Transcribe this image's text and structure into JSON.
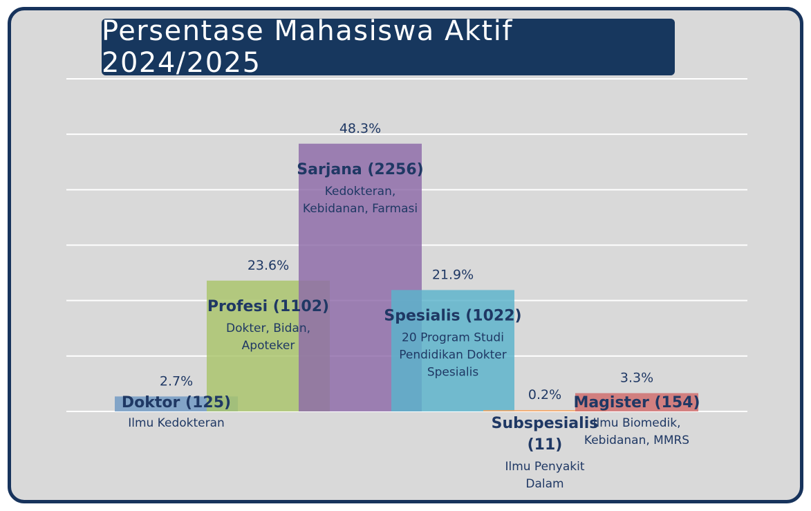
{
  "chart_data": {
    "type": "bar",
    "title": "Persentase Mahasiswa Aktif 2024/2025",
    "ylim": [
      0,
      60
    ],
    "grid": true,
    "legend": "none",
    "bars": [
      {
        "label": "Doktor (125)",
        "sub": [
          "Ilmu Kedokteran"
        ],
        "value": 2.7,
        "value_label": "2.7%",
        "color": "#6f98c3"
      },
      {
        "label": "Profesi (1102)",
        "sub": [
          "Dokter, Bidan,",
          "Apoteker"
        ],
        "value": 23.6,
        "value_label": "23.6%",
        "color": "#a9c56a"
      },
      {
        "label": "Sarjana (2256)",
        "sub": [
          "Kedokteran,",
          "Kebidanan, Farmasi"
        ],
        "value": 48.3,
        "value_label": "48.3%",
        "color": "#8d6aa8"
      },
      {
        "label": "Spesialis (1022)",
        "sub": [
          "20 Program Studi",
          "Pendidikan Dokter",
          "Spesialis"
        ],
        "value": 21.9,
        "value_label": "21.9%",
        "color": "#5ab3cc"
      },
      {
        "label": "Subspesialis (11)",
        "label_lines": [
          "Subspesialis",
          "(11)"
        ],
        "sub": [
          "Ilmu Penyakit",
          "Dalam"
        ],
        "value": 0.2,
        "value_label": "0.2%",
        "color": "#f4a460"
      },
      {
        "label": "Magister (154)",
        "sub": [
          "Ilmu Biomedik,",
          "Kebidanan, MMRS"
        ],
        "value": 3.3,
        "value_label": "3.3%",
        "color": "#cf6b6b"
      }
    ]
  },
  "colors": {
    "frame": "#17335c",
    "title_bg": "#17375e",
    "label": "#1f3864",
    "grid": "#ffffff",
    "background": "#d9d9d9"
  }
}
